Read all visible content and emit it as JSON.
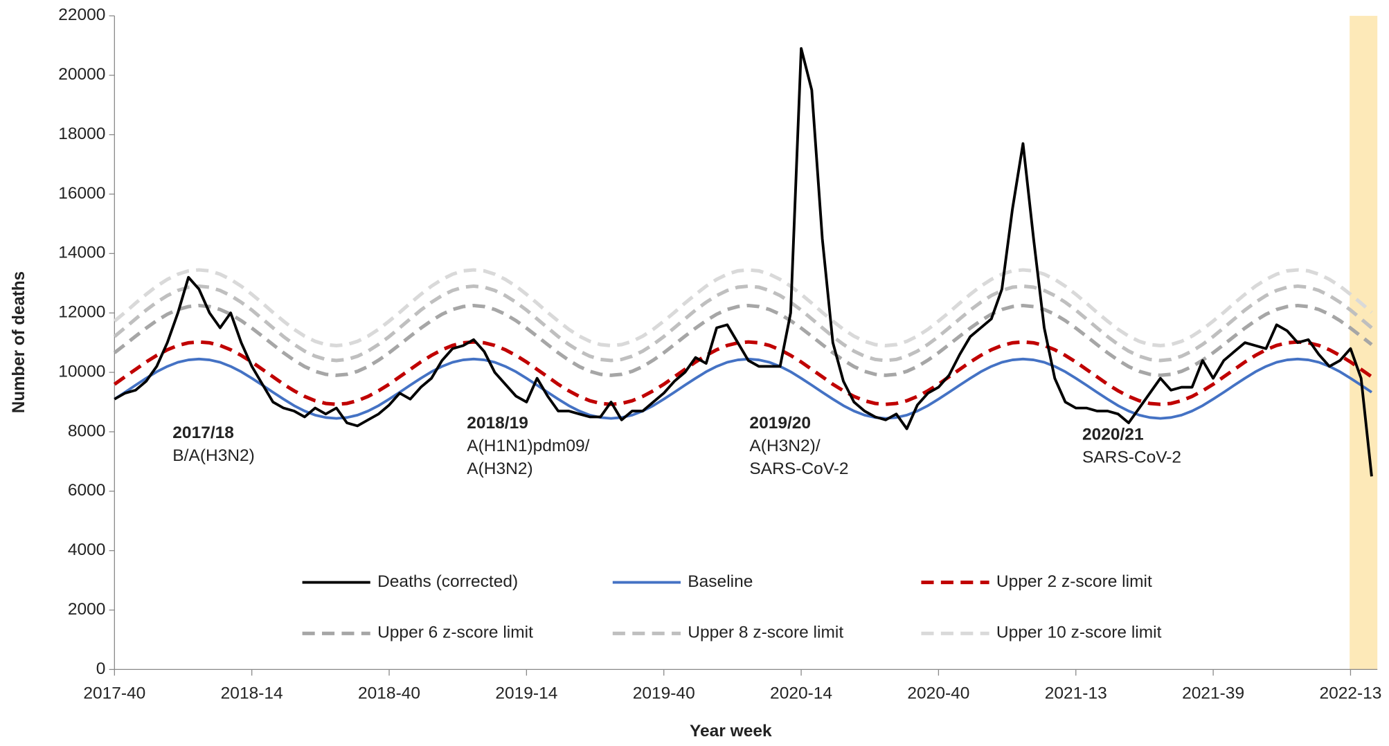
{
  "chart_data": {
    "type": "line",
    "xlabel": "Year week",
    "ylabel": "Number of deaths",
    "ylim": [
      0,
      22000
    ],
    "yticks": [
      0,
      2000,
      4000,
      6000,
      8000,
      10000,
      12000,
      14000,
      16000,
      18000,
      20000,
      22000
    ],
    "categories": [
      "2017-40",
      null,
      null,
      null,
      null,
      null,
      null,
      null,
      null,
      null,
      null,
      null,
      null,
      "2018-14",
      null,
      null,
      null,
      null,
      null,
      null,
      null,
      null,
      null,
      null,
      null,
      null,
      "2018-40",
      null,
      null,
      null,
      null,
      null,
      null,
      null,
      null,
      null,
      null,
      null,
      null,
      "2019-14",
      null,
      null,
      null,
      null,
      null,
      null,
      null,
      null,
      null,
      null,
      null,
      null,
      "2019-40",
      null,
      null,
      null,
      null,
      null,
      null,
      null,
      null,
      null,
      null,
      null,
      null,
      "2020-14",
      null,
      null,
      null,
      null,
      null,
      null,
      null,
      null,
      null,
      null,
      null,
      null,
      "2020-40",
      null,
      null,
      null,
      null,
      null,
      null,
      null,
      null,
      null,
      null,
      null,
      null,
      "2021-13",
      null,
      null,
      null,
      null,
      null,
      null,
      null,
      null,
      null,
      null,
      null,
      null,
      "2021-39",
      null,
      null,
      null,
      null,
      null,
      null,
      null,
      null,
      null,
      null,
      null,
      null,
      "2022-13",
      null,
      null
    ],
    "series": [
      {
        "name": "Deaths (corrected)",
        "color": "#000000",
        "dashed": false,
        "values": [
          9100,
          9300,
          9400,
          9700,
          10200,
          11000,
          12000,
          13200,
          12800,
          12000,
          11500,
          12000,
          11000,
          10200,
          9600,
          9000,
          8800,
          8700,
          8500,
          8800,
          8600,
          8800,
          8300,
          8200,
          8400,
          8600,
          8900,
          9300,
          9100,
          9500,
          9800,
          10400,
          10800,
          10900,
          11100,
          10700,
          10000,
          9600,
          9200,
          9000,
          9800,
          9200,
          8700,
          8700,
          8600,
          8500,
          8500,
          9000,
          8400,
          8700,
          8700,
          9000,
          9300,
          9700,
          10000,
          10500,
          10300,
          11500,
          11600,
          11000,
          10400,
          10200,
          10200,
          10200,
          12000,
          20900,
          19500,
          14500,
          11000,
          9700,
          9000,
          8700,
          8500,
          8400,
          8600,
          8100,
          8900,
          9300,
          9500,
          9900,
          10600,
          11200,
          11500,
          11800,
          12800,
          15500,
          17700,
          14500,
          11500,
          9800,
          9000,
          8800,
          8800,
          8700,
          8700,
          8600,
          8300,
          8800,
          9300,
          9800,
          9400,
          9500,
          9500,
          10400,
          9800,
          10400,
          10700,
          11000,
          10900,
          10800,
          11600,
          11400,
          11000,
          11100,
          10600,
          10200,
          10400,
          10800,
          9800,
          6500
        ]
      },
      {
        "name": "Baseline",
        "color": "#4472c4",
        "dashed": false,
        "values": [
          9100,
          9330,
          9570,
          9800,
          10020,
          10200,
          10340,
          10420,
          10450,
          10420,
          10340,
          10200,
          10020,
          9800,
          9570,
          9330,
          9100,
          8880,
          8700,
          8560,
          8480,
          8450,
          8480,
          8560,
          8700,
          8880,
          9100,
          9330,
          9570,
          9800,
          10020,
          10200,
          10340,
          10420,
          10450,
          10420,
          10340,
          10200,
          10020,
          9800,
          9570,
          9330,
          9100,
          8880,
          8700,
          8560,
          8480,
          8450,
          8480,
          8560,
          8700,
          8880,
          9100,
          9330,
          9570,
          9800,
          10020,
          10200,
          10340,
          10420,
          10450,
          10420,
          10340,
          10200,
          10020,
          9800,
          9570,
          9330,
          9100,
          8880,
          8700,
          8560,
          8480,
          8450,
          8480,
          8560,
          8700,
          8880,
          9100,
          9330,
          9570,
          9800,
          10020,
          10200,
          10340,
          10420,
          10450,
          10420,
          10340,
          10200,
          10020,
          9800,
          9570,
          9330,
          9100,
          8880,
          8700,
          8560,
          8480,
          8450,
          8480,
          8560,
          8700,
          8880,
          9100,
          9330,
          9570,
          9800,
          10020,
          10200,
          10340,
          10420,
          10450,
          10420,
          10340,
          10200,
          10020,
          9800,
          9570,
          9330
        ]
      },
      {
        "name": "Upper 2 z-score limit",
        "color": "#c00000",
        "dashed": true,
        "values": [
          9600,
          9850,
          10100,
          10350,
          10570,
          10760,
          10905,
          10995,
          11025,
          10995,
          10905,
          10760,
          10570,
          10350,
          10100,
          9850,
          9600,
          9380,
          9190,
          9045,
          8955,
          8925,
          8955,
          9045,
          9190,
          9380,
          9600,
          9850,
          10100,
          10350,
          10570,
          10760,
          10905,
          10995,
          11025,
          10995,
          10905,
          10760,
          10570,
          10350,
          10100,
          9850,
          9600,
          9380,
          9190,
          9045,
          8955,
          8925,
          8955,
          9045,
          9190,
          9380,
          9600,
          9850,
          10100,
          10350,
          10570,
          10760,
          10905,
          10995,
          11025,
          10995,
          10905,
          10760,
          10570,
          10350,
          10100,
          9850,
          9600,
          9380,
          9190,
          9045,
          8955,
          8925,
          8955,
          9045,
          9190,
          9380,
          9600,
          9850,
          10100,
          10350,
          10570,
          10760,
          10905,
          10995,
          11025,
          10995,
          10905,
          10760,
          10570,
          10350,
          10100,
          9850,
          9600,
          9380,
          9190,
          9045,
          8955,
          8925,
          8955,
          9045,
          9190,
          9380,
          9600,
          9850,
          10100,
          10350,
          10570,
          10760,
          10905,
          10995,
          11025,
          10995,
          10905,
          10760,
          10570,
          10350,
          10100,
          9850
        ]
      },
      {
        "name": "Upper 6 z-score limit",
        "color": "#a6a6a6",
        "dashed": true,
        "values": [
          10660,
          10935,
          11215,
          11490,
          11740,
          11955,
          12115,
          12215,
          12250,
          12215,
          12115,
          11955,
          11740,
          11490,
          11215,
          10935,
          10660,
          10410,
          10195,
          10035,
          9935,
          9900,
          9935,
          10035,
          10195,
          10410,
          10660,
          10935,
          11215,
          11490,
          11740,
          11955,
          12115,
          12215,
          12250,
          12215,
          12115,
          11955,
          11740,
          11490,
          11215,
          10935,
          10660,
          10410,
          10195,
          10035,
          9935,
          9900,
          9935,
          10035,
          10195,
          10410,
          10660,
          10935,
          11215,
          11490,
          11740,
          11955,
          12115,
          12215,
          12250,
          12215,
          12115,
          11955,
          11740,
          11490,
          11215,
          10935,
          10660,
          10410,
          10195,
          10035,
          9935,
          9900,
          9935,
          10035,
          10195,
          10410,
          10660,
          10935,
          11215,
          11490,
          11740,
          11955,
          12115,
          12215,
          12250,
          12215,
          12115,
          11955,
          11740,
          11490,
          11215,
          10935,
          10660,
          10410,
          10195,
          10035,
          9935,
          9900,
          9935,
          10035,
          10195,
          10410,
          10660,
          10935,
          11215,
          11490,
          11740,
          11955,
          12115,
          12215,
          12250,
          12215,
          12115,
          11955,
          11740,
          11490,
          11215,
          10935
        ]
      },
      {
        "name": "Upper 8 z-score limit",
        "color": "#bfbfbf",
        "dashed": true,
        "values": [
          11205,
          11500,
          11800,
          12095,
          12360,
          12585,
          12755,
          12865,
          12900,
          12865,
          12755,
          12585,
          12360,
          12095,
          11800,
          11500,
          11205,
          10940,
          10715,
          10545,
          10435,
          10400,
          10435,
          10545,
          10715,
          10940,
          11205,
          11500,
          11800,
          12095,
          12360,
          12585,
          12755,
          12865,
          12900,
          12865,
          12755,
          12585,
          12360,
          12095,
          11800,
          11500,
          11205,
          10940,
          10715,
          10545,
          10435,
          10400,
          10435,
          10545,
          10715,
          10940,
          11205,
          11500,
          11800,
          12095,
          12360,
          12585,
          12755,
          12865,
          12900,
          12865,
          12755,
          12585,
          12360,
          12095,
          11800,
          11500,
          11205,
          10940,
          10715,
          10545,
          10435,
          10400,
          10435,
          10545,
          10715,
          10940,
          11205,
          11500,
          11800,
          12095,
          12360,
          12585,
          12755,
          12865,
          12900,
          12865,
          12755,
          12585,
          12360,
          12095,
          11800,
          11500,
          11205,
          10940,
          10715,
          10545,
          10435,
          10400,
          10435,
          10545,
          10715,
          10940,
          11205,
          11500,
          11800,
          12095,
          12360,
          12585,
          12755,
          12865,
          12900,
          12865,
          12755,
          12585,
          12360,
          12095,
          11800,
          11500
        ]
      },
      {
        "name": "Upper 10 z-score limit",
        "color": "#d9d9d9",
        "dashed": true,
        "values": [
          11725,
          12020,
          12330,
          12625,
          12900,
          13130,
          13305,
          13415,
          13450,
          13415,
          13305,
          13130,
          12900,
          12625,
          12330,
          12020,
          11725,
          11450,
          11220,
          11045,
          10935,
          10900,
          10935,
          11045,
          11220,
          11450,
          11725,
          12020,
          12330,
          12625,
          12900,
          13130,
          13305,
          13415,
          13450,
          13415,
          13305,
          13130,
          12900,
          12625,
          12330,
          12020,
          11725,
          11450,
          11220,
          11045,
          10935,
          10900,
          10935,
          11045,
          11220,
          11450,
          11725,
          12020,
          12330,
          12625,
          12900,
          13130,
          13305,
          13415,
          13450,
          13415,
          13305,
          13130,
          12900,
          12625,
          12330,
          12020,
          11725,
          11450,
          11220,
          11045,
          10935,
          10900,
          10935,
          11045,
          11220,
          11450,
          11725,
          12020,
          12330,
          12625,
          12900,
          13130,
          13305,
          13415,
          13450,
          13415,
          13305,
          13130,
          12900,
          12625,
          12330,
          12020,
          11725,
          11450,
          11220,
          11045,
          10935,
          10900,
          10935,
          11045,
          11220,
          11450,
          11725,
          12020,
          12330,
          12625,
          12900,
          13130,
          13305,
          13415,
          13450,
          13415,
          13305,
          13130,
          12900,
          12625,
          12330,
          12020
        ]
      }
    ],
    "annotations": [
      {
        "title": "2017/18",
        "lines": [
          "B/A(H3N2)"
        ]
      },
      {
        "title": "2018/19",
        "lines": [
          "A(H1N1)pdm09/",
          "A(H3N2)"
        ]
      },
      {
        "title": "2019/20",
        "lines": [
          "A(H3N2)/",
          "SARS-CoV-2"
        ]
      },
      {
        "title": "2020/21",
        "lines": [
          "SARS-CoV-2"
        ]
      }
    ]
  }
}
